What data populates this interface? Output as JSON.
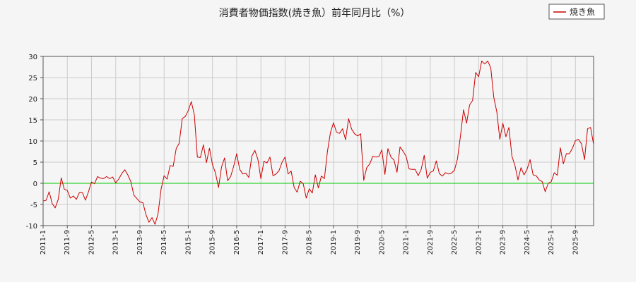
{
  "chart_data": {
    "type": "line",
    "title": "消費者物価指数(焼き魚）前年同月比（%）",
    "xlabel": "",
    "ylabel": "",
    "ylim": [
      -10,
      30
    ],
    "y_ticks": [
      -10,
      -5,
      0,
      5,
      10,
      15,
      20,
      25,
      30
    ],
    "x_tick_labels": [
      "2011-1",
      "2011-9",
      "2012-5",
      "2013-1",
      "2013-9",
      "2014-5",
      "2015-1",
      "2015-9",
      "2016-5",
      "2017-1",
      "2017-9",
      "2018-5",
      "2019-1",
      "2019-9",
      "2020-5",
      "2021-1",
      "2021-9",
      "2022-5",
      "2023-1",
      "2023-9",
      "2024-5",
      "2025-1",
      "2025-9"
    ],
    "x_start": "2011-1",
    "grid": true,
    "legend_position": "top-right",
    "zero_line_color": "#00cc00",
    "series": [
      {
        "name": "焼き魚",
        "color": "#cc0000",
        "values": [
          -4.2,
          -4,
          -2,
          -4.8,
          -5.8,
          -3.8,
          1.3,
          -1.4,
          -1.7,
          -3.5,
          -3,
          -3.8,
          -2.2,
          -2.2,
          -4,
          -2,
          0.3,
          -0.1,
          1.6,
          1.2,
          1.1,
          1.6,
          1.1,
          1.5,
          0.1,
          1,
          2.3,
          3.2,
          2,
          0.4,
          -2.8,
          -3.6,
          -4.4,
          -4.6,
          -7.4,
          -9.2,
          -8.1,
          -9.7,
          -7.2,
          -1.4,
          1.8,
          1,
          4.2,
          4,
          8.2,
          9.5,
          15.3,
          15.8,
          17.2,
          19.3,
          16.2,
          6.2,
          6.1,
          9.1,
          4.9,
          8.3,
          4.4,
          2.4,
          -1,
          3.9,
          6,
          0.6,
          1.6,
          4,
          7,
          3.3,
          2.2,
          2.4,
          1.4,
          6.4,
          7.8,
          5.7,
          1.1,
          5.2,
          4.8,
          6.2,
          1.8,
          2.2,
          3,
          5,
          6.2,
          2.2,
          2.9,
          -1,
          -2.1,
          0.5,
          -0.1,
          -3.5,
          -1.3,
          -2.3,
          2,
          -1.1,
          1.7,
          1.1,
          7.5,
          12,
          14.3,
          12.1,
          11.8,
          12.9,
          10.3,
          15.3,
          12.8,
          11.7,
          11.2,
          11.7,
          0.7,
          3.7,
          4.6,
          6.4,
          6.2,
          6.3,
          7.9,
          2.1,
          8.2,
          6.2,
          5.5,
          2.6,
          8.6,
          7.6,
          6.4,
          3.4,
          3.3,
          3.3,
          1.8,
          3.3,
          6.6,
          1.2,
          2.6,
          2.9,
          5.3,
          2.3,
          1.7,
          2.5,
          2.2,
          2.4,
          3.1,
          5.8,
          11.3,
          17.4,
          14.2,
          18.5,
          19.6,
          26.2,
          25.2,
          28.9,
          28.2,
          28.9,
          27.3,
          20.3,
          16.9,
          10.4,
          14.2,
          11,
          13.2,
          6.4,
          4.2,
          0.8,
          3.7,
          2,
          3.3,
          5.6,
          2,
          1.8,
          0.8,
          0.4,
          -2,
          0,
          0.4,
          2.5,
          1.9,
          8.4,
          4.6,
          7,
          7,
          8.3,
          10.1,
          10.4,
          9.3,
          5.6,
          12.9,
          13.2,
          9.2
        ]
      }
    ]
  }
}
